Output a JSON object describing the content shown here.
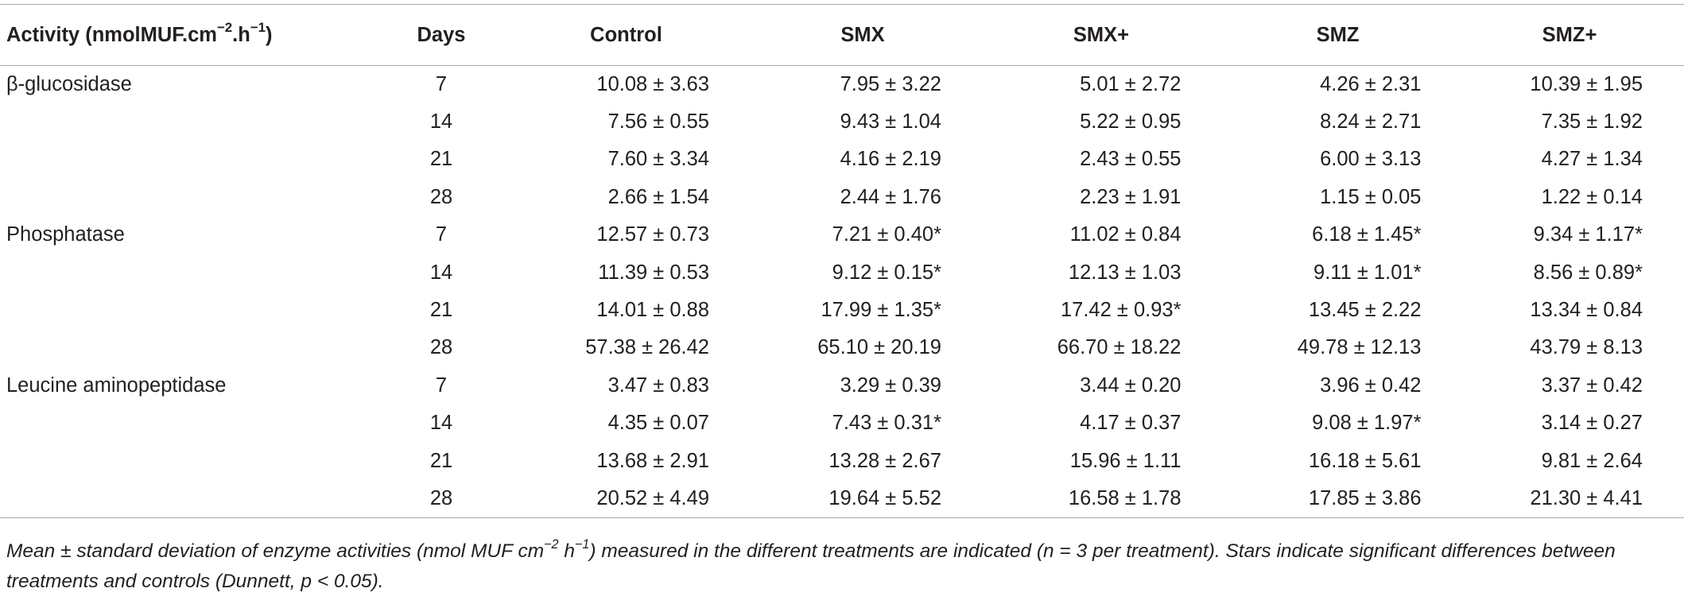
{
  "table": {
    "header": {
      "activity": "Activity (nmolMUF.cm",
      "activity_exp1": "−2",
      "activity_mid": ".h",
      "activity_exp2": "−1",
      "activity_end": ")",
      "days": "Days",
      "control": "Control",
      "smx": "SMX",
      "smx_plus": "SMX+",
      "smz": "SMZ",
      "smz_plus": "SMZ+"
    },
    "rows": [
      {
        "activity": "β-glucosidase",
        "days": "7",
        "control": "10.08 ± 3.63",
        "smx": "7.95 ± 3.22",
        "smx_plus": "5.01 ± 2.72",
        "smz": "4.26 ± 2.31",
        "smz_plus": "10.39 ± 1.95"
      },
      {
        "activity": "",
        "days": "14",
        "control": "7.56 ± 0.55",
        "smx": "9.43 ± 1.04",
        "smx_plus": "5.22 ± 0.95",
        "smz": "8.24 ± 2.71",
        "smz_plus": "7.35 ± 1.92"
      },
      {
        "activity": "",
        "days": "21",
        "control": "7.60 ± 3.34",
        "smx": "4.16 ± 2.19",
        "smx_plus": "2.43 ± 0.55",
        "smz": "6.00 ± 3.13",
        "smz_plus": "4.27 ± 1.34"
      },
      {
        "activity": "",
        "days": "28",
        "control": "2.66 ± 1.54",
        "smx": "2.44 ± 1.76",
        "smx_plus": "2.23 ± 1.91",
        "smz": "1.15 ± 0.05",
        "smz_plus": "1.22 ± 0.14"
      },
      {
        "activity": "Phosphatase",
        "days": "7",
        "control": "12.57 ± 0.73",
        "smx": "7.21 ± 0.40*",
        "smx_plus": "11.02 ± 0.84",
        "smz": "6.18 ± 1.45*",
        "smz_plus": "9.34 ± 1.17*"
      },
      {
        "activity": "",
        "days": "14",
        "control": "11.39 ± 0.53",
        "smx": "9.12 ± 0.15*",
        "smx_plus": "12.13 ± 1.03",
        "smz": "9.11 ± 1.01*",
        "smz_plus": "8.56 ± 0.89*"
      },
      {
        "activity": "",
        "days": "21",
        "control": "14.01 ± 0.88",
        "smx": "17.99 ± 1.35*",
        "smx_plus": "17.42 ± 0.93*",
        "smz": "13.45 ± 2.22",
        "smz_plus": "13.34 ± 0.84"
      },
      {
        "activity": "",
        "days": "28",
        "control": "57.38 ± 26.42",
        "smx": "65.10 ± 20.19",
        "smx_plus": "66.70 ± 18.22",
        "smz": "49.78 ± 12.13",
        "smz_plus": "43.79 ± 8.13"
      },
      {
        "activity": "Leucine aminopeptidase",
        "days": "7",
        "control": "3.47 ± 0.83",
        "smx": "3.29 ± 0.39",
        "smx_plus": "3.44 ± 0.20",
        "smz": "3.96 ± 0.42",
        "smz_plus": "3.37 ± 0.42"
      },
      {
        "activity": "",
        "days": "14",
        "control": "4.35 ± 0.07",
        "smx": "7.43 ± 0.31*",
        "smx_plus": "4.17 ± 0.37",
        "smz": "9.08 ± 1.97*",
        "smz_plus": "3.14 ± 0.27"
      },
      {
        "activity": "",
        "days": "21",
        "control": "13.68 ± 2.91",
        "smx": "13.28 ± 2.67",
        "smx_plus": "15.96 ± 1.11",
        "smz": "16.18 ± 5.61",
        "smz_plus": "9.81 ± 2.64"
      },
      {
        "activity": "",
        "days": "28",
        "control": "20.52 ± 4.49",
        "smx": "19.64 ± 5.52",
        "smx_plus": "16.58 ± 1.78",
        "smz": "17.85 ± 3.86",
        "smz_plus": "21.30 ± 4.41"
      }
    ]
  },
  "footnote": {
    "part1": "Mean ± standard deviation of enzyme activities (nmol MUF cm",
    "exp1": "−2",
    "part2": " h",
    "exp2": "−1",
    "part3": ") measured in the different treatments are indicated (n = 3 per treatment). Stars indicate significant differences between treatments and controls (Dunnett, p < 0.05)."
  }
}
